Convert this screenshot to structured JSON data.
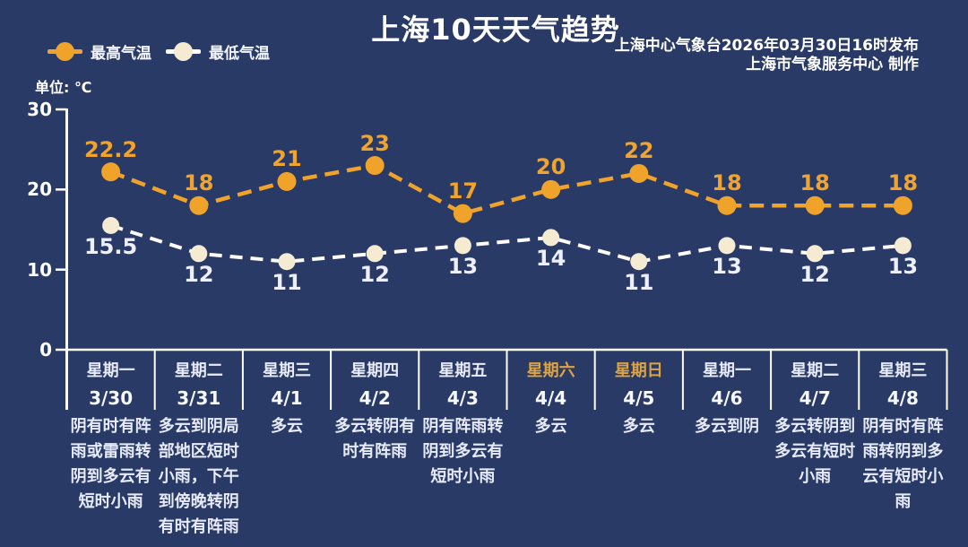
{
  "header": {
    "title": "上海10天天气趋势",
    "publisher_line1": "上海中心气象台2026年03月30日16时发布",
    "publisher_line2": "上海市气象服务中心 制作"
  },
  "legend": {
    "high_label": "最高气温",
    "low_label": "最低气温"
  },
  "unit_label": "单位: ℃",
  "colors": {
    "background": "#2a3a66",
    "title": "#ffffff",
    "axis": "#ffffff",
    "high": "#f0a32b",
    "high_label": "#f0a42e",
    "low_line": "#ffffff",
    "low_dot": "#f5ead2",
    "low_label": "#edeffc",
    "day_text": "#e7ebfa",
    "weekend_text": "#dda444"
  },
  "chart_data": {
    "type": "line",
    "title": "上海10天天气趋势",
    "unit": "℃",
    "categories": [
      "3/30",
      "3/31",
      "4/1",
      "4/2",
      "4/3",
      "4/4",
      "4/5",
      "4/6",
      "4/7",
      "4/8"
    ],
    "series": [
      {
        "name": "最高气温",
        "values": [
          22.2,
          18,
          21,
          23,
          17,
          20,
          22,
          18,
          18,
          18
        ]
      },
      {
        "name": "最低气温",
        "values": [
          15.5,
          12,
          11,
          12,
          13,
          14,
          11,
          13,
          12,
          13
        ]
      }
    ],
    "ylim": [
      0,
      30
    ],
    "yticks": [
      0,
      10,
      20,
      30
    ],
    "grid": false,
    "legend_position": "top-left"
  },
  "days": [
    {
      "weekday": "星期一",
      "date": "3/30",
      "weekend": false,
      "weather": "阴有时有阵雨或雷雨转阴到多云有短时小雨"
    },
    {
      "weekday": "星期二",
      "date": "3/31",
      "weekend": false,
      "weather": "多云到阴局部地区短时小雨，下午到傍晚转阴有时有阵雨"
    },
    {
      "weekday": "星期三",
      "date": "4/1",
      "weekend": false,
      "weather": "多云"
    },
    {
      "weekday": "星期四",
      "date": "4/2",
      "weekend": false,
      "weather": "多云转阴有时有阵雨"
    },
    {
      "weekday": "星期五",
      "date": "4/3",
      "weekend": false,
      "weather": "阴有阵雨转阴到多云有短时小雨"
    },
    {
      "weekday": "星期六",
      "date": "4/4",
      "weekend": true,
      "weather": "多云"
    },
    {
      "weekday": "星期日",
      "date": "4/5",
      "weekend": true,
      "weather": "多云"
    },
    {
      "weekday": "星期一",
      "date": "4/6",
      "weekend": false,
      "weather": "多云到阴"
    },
    {
      "weekday": "星期二",
      "date": "4/7",
      "weekend": false,
      "weather": "多云转阴到多云有短时小雨"
    },
    {
      "weekday": "星期三",
      "date": "4/8",
      "weekend": false,
      "weather": "阴有时有阵雨转阴到多云有短时小雨"
    }
  ]
}
